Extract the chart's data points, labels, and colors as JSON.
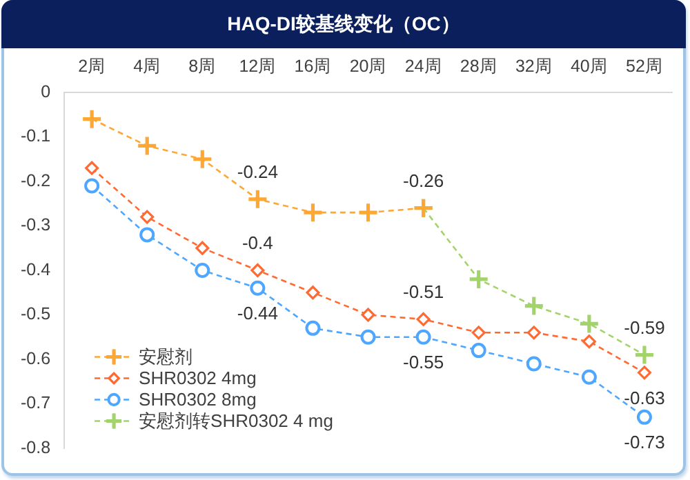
{
  "chart_data": {
    "type": "line",
    "title": "HAQ-DI较基线变化（OC）",
    "categories": [
      "2周",
      "4周",
      "8周",
      "12周",
      "16周",
      "20周",
      "24周",
      "28周",
      "32周",
      "40周",
      "52周"
    ],
    "series": [
      {
        "name": "安慰剂",
        "color": "#ffa733",
        "marker": "cross",
        "values": [
          -0.06,
          -0.12,
          -0.15,
          -0.24,
          -0.27,
          -0.27,
          -0.26,
          null,
          null,
          null,
          null
        ],
        "value_labels": [
          null,
          null,
          null,
          "-0.24",
          null,
          null,
          "-0.26",
          null,
          null,
          null,
          null
        ]
      },
      {
        "name": "SHR0302 4mg",
        "color": "#ff6a33",
        "marker": "diamond",
        "values": [
          -0.17,
          -0.28,
          -0.35,
          -0.4,
          -0.45,
          -0.5,
          -0.51,
          -0.54,
          -0.54,
          -0.56,
          -0.63
        ],
        "value_labels": [
          null,
          null,
          null,
          "-0.4",
          null,
          null,
          "-0.51",
          null,
          null,
          null,
          "-0.63"
        ]
      },
      {
        "name": "SHR0302 8mg",
        "color": "#4da6ff",
        "marker": "circle",
        "values": [
          -0.21,
          -0.32,
          -0.4,
          -0.44,
          -0.53,
          -0.55,
          -0.55,
          -0.58,
          -0.61,
          -0.64,
          -0.73
        ],
        "value_labels": [
          null,
          null,
          null,
          "-0.44",
          null,
          null,
          "-0.55",
          null,
          null,
          null,
          "-0.73"
        ]
      },
      {
        "name": "安慰剂转SHR0302 4 mg",
        "color": "#a3d46c",
        "marker": "cross",
        "values": [
          null,
          null,
          null,
          null,
          null,
          null,
          -0.26,
          -0.42,
          -0.48,
          -0.52,
          -0.59
        ],
        "value_labels": [
          null,
          null,
          null,
          null,
          null,
          null,
          null,
          null,
          null,
          null,
          "-0.59"
        ]
      }
    ],
    "ylim": [
      -0.8,
      0
    ],
    "yticks": [
      0,
      -0.1,
      -0.2,
      -0.3,
      -0.4,
      -0.5,
      -0.6,
      -0.7,
      -0.8
    ],
    "legend": "bottom left",
    "line_style": "dashed"
  }
}
